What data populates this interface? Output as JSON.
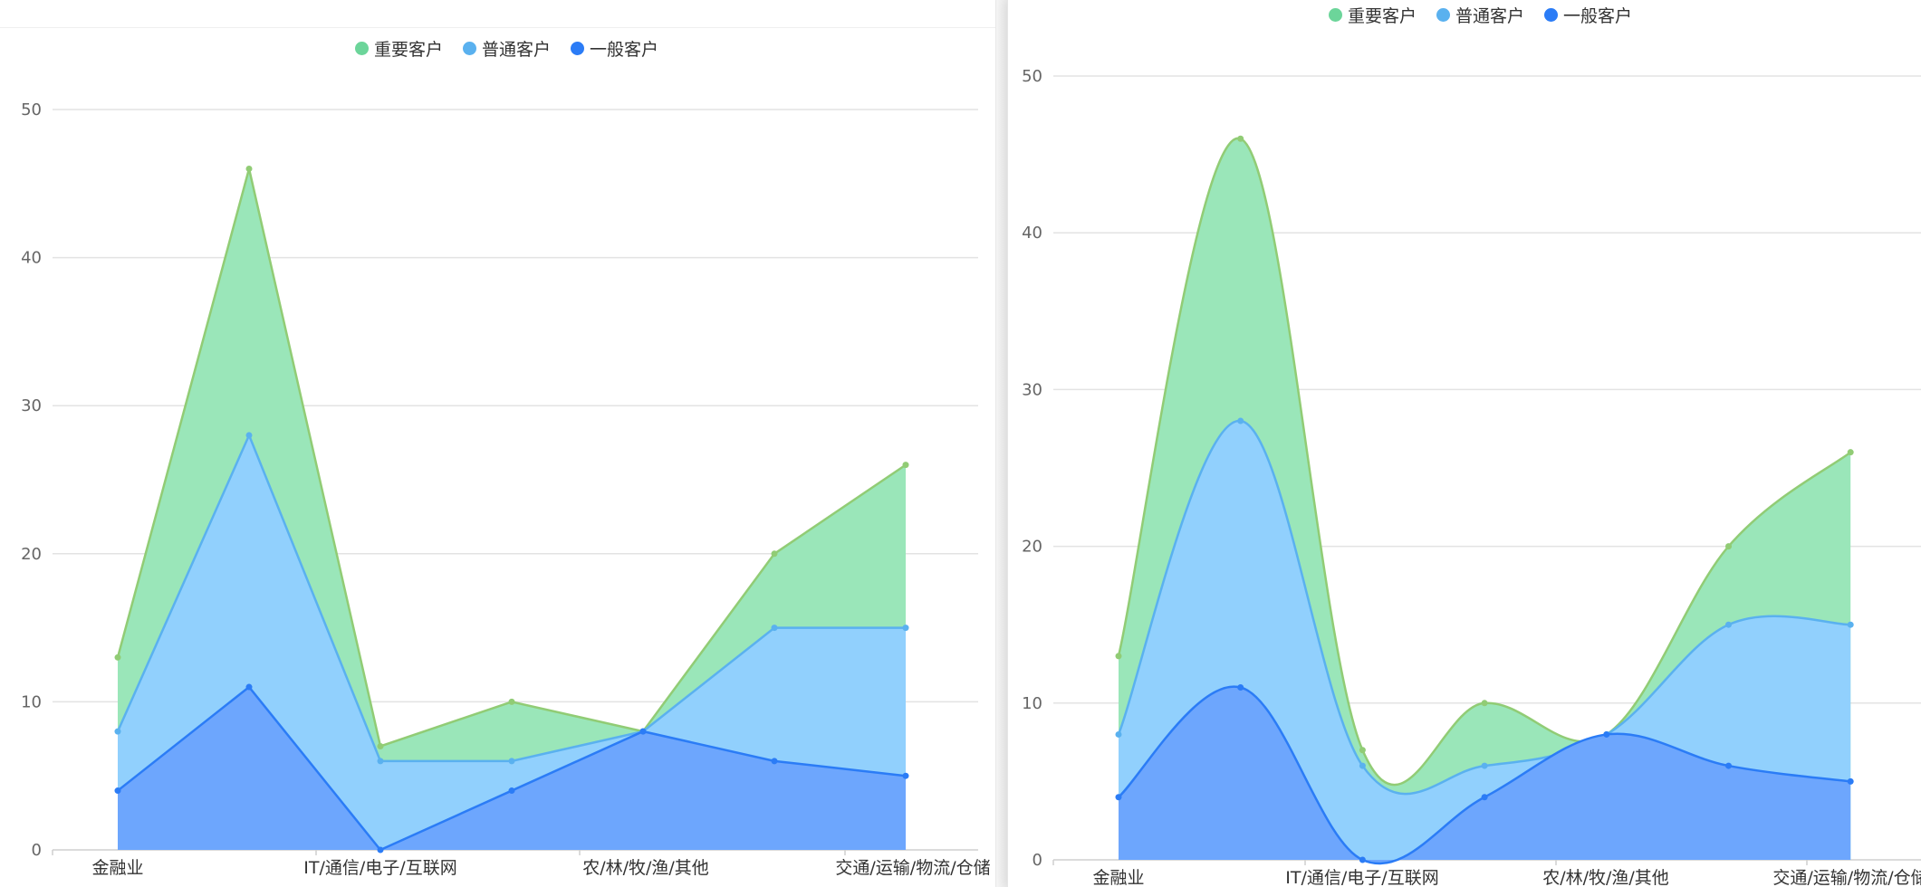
{
  "chart_data": [
    {
      "type": "area",
      "stacked": false,
      "smooth": false,
      "categories": [
        "金融业",
        "",
        "IT/通信/电子/互联网",
        "",
        "农/林/牧/渔/其他",
        "",
        "交通/运输/物流/仓储"
      ],
      "axis_labels": [
        "金融业",
        "IT/通信/电子/互联网",
        "农/林/牧/渔/其他",
        "交通/运输/物流/仓储"
      ],
      "ylim": [
        0,
        50
      ],
      "yticks": [
        0,
        10,
        20,
        30,
        40,
        50
      ],
      "grid": true,
      "legend_position": "top-center",
      "series": [
        {
          "name": "重要客户",
          "values": [
            13,
            46,
            7,
            10,
            8,
            20,
            26
          ],
          "color": "#91cc75",
          "fill": "#9ae6b9"
        },
        {
          "name": "普通客户",
          "values": [
            8,
            28,
            6,
            6,
            8,
            15,
            15
          ],
          "color": "#5ab1ef",
          "fill": "#91d0fd"
        },
        {
          "name": "一般客户",
          "values": [
            4,
            11,
            0,
            4,
            8,
            6,
            5
          ],
          "color": "#2b7cf6",
          "fill": "#6da6fd"
        }
      ]
    },
    {
      "type": "area",
      "stacked": false,
      "smooth": true,
      "categories": [
        "金融业",
        "",
        "IT/通信/电子/互联网",
        "",
        "农/林/牧/渔/其他",
        "",
        "交通/运输/物流/仓储"
      ],
      "axis_labels": [
        "金融业",
        "IT/通信/电子/互联网",
        "农/林/牧/渔/其他",
        "交通/运输/物流/仓储"
      ],
      "ylim": [
        0,
        50
      ],
      "yticks": [
        0,
        10,
        20,
        30,
        40,
        50
      ],
      "grid": true,
      "legend_position": "top-center",
      "series": [
        {
          "name": "重要客户",
          "values": [
            13,
            46,
            7,
            10,
            8,
            20,
            26
          ],
          "color": "#91cc75",
          "fill": "#9ae6b9"
        },
        {
          "name": "普通客户",
          "values": [
            8,
            28,
            6,
            6,
            8,
            15,
            15
          ],
          "color": "#5ab1ef",
          "fill": "#91d0fd"
        },
        {
          "name": "一般客户",
          "values": [
            4,
            11,
            0,
            4,
            8,
            6,
            5
          ],
          "color": "#2b7cf6",
          "fill": "#6da6fd"
        }
      ]
    }
  ],
  "legend_icon_colors": [
    "#6cd59a",
    "#5ab1ef",
    "#2b7cf6"
  ]
}
